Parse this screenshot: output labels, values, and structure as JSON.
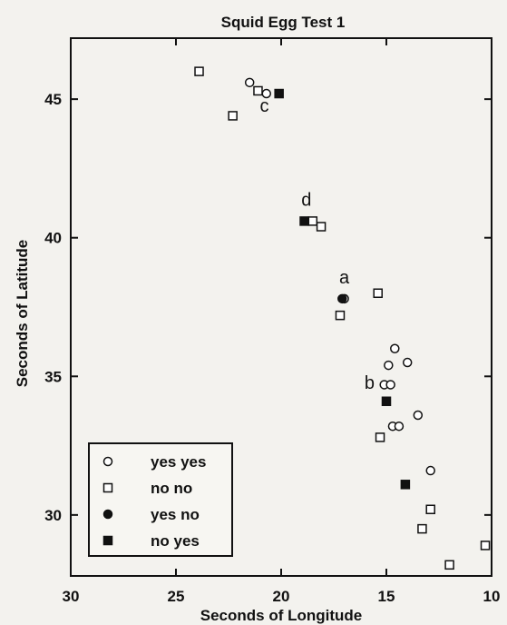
{
  "chart_data": {
    "type": "scatter",
    "title": "Squid Egg Test 1",
    "xlabel": "Seconds of Longitude",
    "ylabel": "Seconds of Latitude",
    "xlim": [
      30,
      10
    ],
    "ylim": [
      27.8,
      47.2
    ],
    "x_reversed": true,
    "xticks": [
      30,
      25,
      20,
      15,
      10
    ],
    "yticks": [
      30,
      35,
      40,
      45
    ],
    "grid": false,
    "legend_position": "bottom-left",
    "series": [
      {
        "name": "yes yes",
        "marker": "circle-open",
        "points": [
          [
            21.5,
            45.6
          ],
          [
            20.7,
            45.2
          ],
          [
            17.0,
            37.8
          ],
          [
            14.6,
            36.0
          ],
          [
            14.0,
            35.5
          ],
          [
            14.9,
            35.4
          ],
          [
            15.1,
            34.7
          ],
          [
            14.8,
            34.7
          ],
          [
            13.5,
            33.6
          ],
          [
            14.7,
            33.2
          ],
          [
            14.4,
            33.2
          ],
          [
            12.9,
            31.6
          ]
        ]
      },
      {
        "name": "no no",
        "marker": "square-open",
        "points": [
          [
            23.9,
            46.0
          ],
          [
            22.3,
            44.4
          ],
          [
            21.1,
            45.3
          ],
          [
            18.5,
            40.6
          ],
          [
            18.1,
            40.4
          ],
          [
            15.4,
            38.0
          ],
          [
            17.2,
            37.2
          ],
          [
            15.3,
            32.8
          ],
          [
            12.9,
            30.2
          ],
          [
            13.3,
            29.5
          ],
          [
            12.0,
            28.2
          ],
          [
            10.3,
            28.9
          ]
        ]
      },
      {
        "name": "yes no",
        "marker": "circle-filled",
        "points": [
          [
            17.1,
            37.8
          ]
        ]
      },
      {
        "name": "no yes",
        "marker": "square-filled",
        "points": [
          [
            20.1,
            45.2
          ],
          [
            18.9,
            40.6
          ],
          [
            15.0,
            34.1
          ],
          [
            14.1,
            31.1
          ]
        ]
      }
    ],
    "annotations": [
      {
        "text": "c",
        "x": 20.8,
        "y": 44.55
      },
      {
        "text": "d",
        "x": 18.8,
        "y": 41.15
      },
      {
        "text": "a",
        "x": 17.0,
        "y": 38.35
      },
      {
        "text": "b",
        "x": 15.8,
        "y": 34.55
      }
    ]
  }
}
